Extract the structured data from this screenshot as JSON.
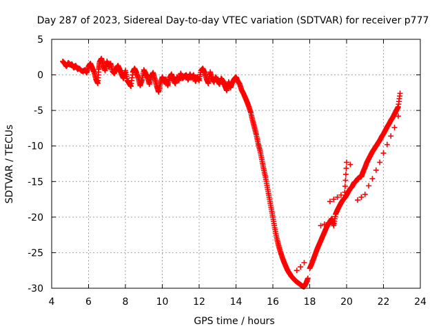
{
  "chart_data": {
    "type": "scatter",
    "title": "Day 287 of 2023, Sidereal Day-to-day VTEC variation (SDTVAR) for receiver p777",
    "xlabel": "GPS time / hours",
    "ylabel": "SDTVAR / TECUs",
    "xlim": [
      4,
      24
    ],
    "ylim": [
      -30,
      5
    ],
    "xticks": [
      4,
      6,
      8,
      10,
      12,
      14,
      16,
      18,
      20,
      22,
      24
    ],
    "yticks": [
      5,
      0,
      -5,
      -10,
      -15,
      -20,
      -25,
      -30
    ],
    "xtick_labels": [
      "4",
      "6",
      "8",
      "10",
      "12",
      "14",
      "16",
      "18",
      "20",
      "22",
      "24"
    ],
    "ytick_labels": [
      "5",
      "0",
      "-5",
      "-10",
      "-15",
      "-20",
      "-25",
      "-30"
    ],
    "grid": true,
    "marker": "plus",
    "color": "#ff0000",
    "series": [
      {
        "name": "p777",
        "points": [
          [
            4.6,
            1.9
          ],
          [
            4.7,
            1.6
          ],
          [
            4.8,
            1.2
          ],
          [
            4.9,
            1.7
          ],
          [
            5.0,
            1.4
          ],
          [
            5.1,
            1.5
          ],
          [
            5.2,
            1.0
          ],
          [
            5.3,
            1.3
          ],
          [
            5.4,
            0.8
          ],
          [
            5.5,
            0.9
          ],
          [
            5.6,
            0.6
          ],
          [
            5.7,
            0.5
          ],
          [
            5.8,
            0.7
          ],
          [
            5.9,
            0.3
          ],
          [
            6.0,
            1.2
          ],
          [
            6.1,
            1.6
          ],
          [
            6.2,
            1.0
          ],
          [
            6.3,
            0.4
          ],
          [
            6.4,
            -0.6
          ],
          [
            6.5,
            -1.2
          ],
          [
            6.55,
            0.8
          ],
          [
            6.6,
            1.8
          ],
          [
            6.7,
            2.3
          ],
          [
            6.8,
            1.4
          ],
          [
            6.9,
            0.6
          ],
          [
            7.0,
            1.9
          ],
          [
            7.1,
            1.1
          ],
          [
            7.2,
            1.6
          ],
          [
            7.3,
            0.5
          ],
          [
            7.4,
            0.2
          ],
          [
            7.5,
            0.9
          ],
          [
            7.6,
            1.3
          ],
          [
            7.7,
            0.7
          ],
          [
            7.8,
            0.0
          ],
          [
            7.9,
            -0.5
          ],
          [
            8.0,
            0.6
          ],
          [
            8.1,
            -0.8
          ],
          [
            8.2,
            -1.2
          ],
          [
            8.3,
            -1.6
          ],
          [
            8.4,
            0.4
          ],
          [
            8.5,
            0.9
          ],
          [
            8.6,
            0.3
          ],
          [
            8.7,
            -0.5
          ],
          [
            8.8,
            -1.5
          ],
          [
            8.9,
            -0.7
          ],
          [
            9.0,
            0.7
          ],
          [
            9.1,
            0.2
          ],
          [
            9.2,
            -0.4
          ],
          [
            9.3,
            -1.3
          ],
          [
            9.4,
            -0.2
          ],
          [
            9.5,
            0.3
          ],
          [
            9.6,
            -0.6
          ],
          [
            9.7,
            -1.6
          ],
          [
            9.8,
            -2.4
          ],
          [
            9.9,
            -1.2
          ],
          [
            10.0,
            -0.3
          ],
          [
            10.1,
            -1.0
          ],
          [
            10.2,
            -0.6
          ],
          [
            10.3,
            -1.5
          ],
          [
            10.4,
            -0.4
          ],
          [
            10.5,
            0.1
          ],
          [
            10.6,
            -0.7
          ],
          [
            10.7,
            -1.2
          ],
          [
            10.8,
            -0.3
          ],
          [
            10.9,
            -0.8
          ],
          [
            11.0,
            0.2
          ],
          [
            11.1,
            -0.5
          ],
          [
            11.2,
            -0.2
          ],
          [
            11.3,
            0.0
          ],
          [
            11.4,
            -0.7
          ],
          [
            11.5,
            0.1
          ],
          [
            11.6,
            -0.4
          ],
          [
            11.7,
            0.0
          ],
          [
            11.8,
            -0.9
          ],
          [
            11.9,
            -0.3
          ],
          [
            12.0,
            -0.8
          ],
          [
            12.1,
            0.6
          ],
          [
            12.2,
            0.9
          ],
          [
            12.3,
            0.3
          ],
          [
            12.4,
            -0.6
          ],
          [
            12.5,
            -1.2
          ],
          [
            12.6,
            0.4
          ],
          [
            12.7,
            -0.5
          ],
          [
            12.8,
            -1.0
          ],
          [
            12.9,
            -0.3
          ],
          [
            13.0,
            -0.8
          ],
          [
            13.1,
            -1.3
          ],
          [
            13.2,
            -0.5
          ],
          [
            13.3,
            -0.9
          ],
          [
            13.4,
            -1.6
          ],
          [
            13.5,
            -2.2
          ],
          [
            13.6,
            -1.0
          ],
          [
            13.7,
            -1.8
          ],
          [
            13.8,
            -1.1
          ],
          [
            13.9,
            -0.6
          ],
          [
            14.0,
            -0.3
          ],
          [
            14.1,
            -0.9
          ],
          [
            14.2,
            -1.3
          ],
          [
            14.3,
            -2.1
          ],
          [
            14.4,
            -2.6
          ],
          [
            14.5,
            -3.2
          ],
          [
            14.6,
            -3.8
          ],
          [
            14.7,
            -4.5
          ],
          [
            14.8,
            -5.3
          ],
          [
            14.9,
            -6.4
          ],
          [
            15.0,
            -7.4
          ],
          [
            15.1,
            -8.4
          ],
          [
            15.2,
            -9.6
          ],
          [
            15.3,
            -10.6
          ],
          [
            15.4,
            -11.9
          ],
          [
            15.5,
            -13.2
          ],
          [
            15.6,
            -14.4
          ],
          [
            15.7,
            -15.8
          ],
          [
            15.8,
            -17.2
          ],
          [
            15.9,
            -18.6
          ],
          [
            16.0,
            -20.0
          ],
          [
            16.1,
            -21.5
          ],
          [
            16.2,
            -22.8
          ],
          [
            16.3,
            -23.9
          ],
          [
            16.4,
            -24.8
          ],
          [
            16.5,
            -25.6
          ],
          [
            16.6,
            -26.3
          ],
          [
            16.7,
            -26.9
          ],
          [
            16.8,
            -27.5
          ],
          [
            16.9,
            -27.9
          ],
          [
            17.0,
            -28.3
          ],
          [
            17.1,
            -28.6
          ],
          [
            17.2,
            -28.9
          ],
          [
            17.3,
            -29.1
          ],
          [
            17.4,
            -29.3
          ],
          [
            17.5,
            -29.5
          ],
          [
            17.6,
            -29.7
          ],
          [
            17.7,
            -29.8
          ],
          [
            17.8,
            -29.3
          ],
          [
            17.9,
            -28.6
          ],
          [
            17.3,
            -27.5
          ],
          [
            17.5,
            -27.0
          ],
          [
            17.7,
            -26.4
          ],
          [
            18.0,
            -27.2
          ],
          [
            18.1,
            -26.6
          ],
          [
            18.2,
            -25.9
          ],
          [
            18.3,
            -25.2
          ],
          [
            18.4,
            -24.5
          ],
          [
            18.5,
            -23.9
          ],
          [
            18.6,
            -23.3
          ],
          [
            18.7,
            -22.7
          ],
          [
            18.8,
            -22.1
          ],
          [
            18.9,
            -21.5
          ],
          [
            19.0,
            -21.0
          ],
          [
            19.1,
            -20.6
          ],
          [
            19.2,
            -20.2
          ],
          [
            19.3,
            -21.2
          ],
          [
            19.4,
            -19.6
          ],
          [
            19.5,
            -19.0
          ],
          [
            19.6,
            -18.5
          ],
          [
            19.7,
            -18.0
          ],
          [
            19.8,
            -17.6
          ],
          [
            19.9,
            -17.3
          ],
          [
            20.0,
            -16.9
          ],
          [
            20.1,
            -16.4
          ],
          [
            20.2,
            -16.0
          ],
          [
            20.3,
            -15.7
          ],
          [
            20.4,
            -15.2
          ],
          [
            20.5,
            -15.0
          ],
          [
            20.6,
            -14.6
          ],
          [
            20.7,
            -14.4
          ],
          [
            20.8,
            -14.3
          ],
          [
            20.9,
            -13.6
          ],
          [
            21.0,
            -13.0
          ],
          [
            21.1,
            -12.3
          ],
          [
            21.2,
            -11.8
          ],
          [
            21.3,
            -11.3
          ],
          [
            21.4,
            -10.8
          ],
          [
            21.5,
            -10.4
          ],
          [
            21.6,
            -10.0
          ],
          [
            21.7,
            -9.6
          ],
          [
            21.8,
            -9.2
          ],
          [
            21.9,
            -8.7
          ],
          [
            22.0,
            -8.3
          ],
          [
            22.1,
            -7.8
          ],
          [
            22.2,
            -7.3
          ],
          [
            22.3,
            -6.9
          ],
          [
            22.4,
            -6.4
          ],
          [
            22.5,
            -6.0
          ],
          [
            22.6,
            -5.5
          ],
          [
            22.7,
            -5.0
          ],
          [
            22.8,
            -4.5
          ],
          [
            22.9,
            -2.6
          ],
          [
            19.1,
            -17.8
          ],
          [
            19.3,
            -17.5
          ],
          [
            19.5,
            -17.2
          ],
          [
            19.7,
            -16.9
          ],
          [
            19.9,
            -16.5
          ],
          [
            20.0,
            -12.3
          ],
          [
            20.2,
            -12.6
          ],
          [
            20.6,
            -17.6
          ],
          [
            20.8,
            -17.2
          ],
          [
            21.0,
            -16.8
          ],
          [
            21.2,
            -15.6
          ],
          [
            21.4,
            -14.6
          ],
          [
            21.6,
            -13.4
          ],
          [
            21.8,
            -12.3
          ],
          [
            22.0,
            -11.0
          ],
          [
            22.2,
            -9.8
          ],
          [
            22.4,
            -8.6
          ],
          [
            22.6,
            -7.4
          ],
          [
            22.8,
            -5.8
          ],
          [
            18.6,
            -21.2
          ],
          [
            18.8,
            -21.0
          ],
          [
            19.0,
            -20.8
          ]
        ]
      }
    ]
  }
}
